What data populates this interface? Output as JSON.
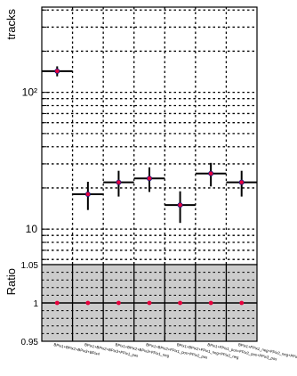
{
  "chart_data": [
    {
      "type": "scatter",
      "role": "main",
      "ylabel": "tracks",
      "yscale": "log",
      "ylim": [
        5.5,
        420
      ],
      "yticks": [
        {
          "value": 10,
          "label": "10"
        },
        {
          "value": 100,
          "label": "10²"
        }
      ],
      "grid": true,
      "marker_color": "#e8003c",
      "error_color": "#000000",
      "series": [
        {
          "x": [
            "BPix1+BPix2+BPix3+BPix4",
            "BPix1+BPix2+BPix3+FPix1_pos",
            "BPix1+BPix2+BPix3+FPix1_neg",
            "BPix1+BPix2+FPix1_pos+FPix2_pos",
            "BPix1+BPix2+FPix1_neg+FPix2_neg",
            "BPix1+FPix1_pos+FPix2_pos+FPix3_pos",
            "BPix1+FPix1_neg+FPix2_neg+FPix3_neg"
          ],
          "values": [
            143,
            18,
            22,
            23.5,
            15,
            25.5,
            22
          ],
          "errors": [
            12,
            4.2,
            4.7,
            4.8,
            3.9,
            5.0,
            4.7
          ]
        }
      ]
    },
    {
      "type": "scatter",
      "role": "ratio",
      "ylabel": "Ratio",
      "ylim": [
        0.95,
        1.05
      ],
      "yticks": [
        {
          "value": 0.95,
          "label": "0.95"
        },
        {
          "value": 1.0,
          "label": "1"
        },
        {
          "value": 1.05,
          "label": "1.05"
        }
      ],
      "grid": true,
      "band_color": "#cccccc",
      "marker_color": "#e8003c",
      "series": [
        {
          "x": [
            "BPix1+BPix2+BPix3+BPix4",
            "BPix1+BPix2+BPix3+FPix1_pos",
            "BPix1+BPix2+BPix3+FPix1_neg",
            "BPix1+BPix2+FPix1_pos+FPix2_pos",
            "BPix1+BPix2+FPix1_neg+FPix2_neg",
            "BPix1+FPix1_pos+FPix2_pos+FPix3_pos",
            "BPix1+FPix1_neg+FPix2_neg+FPix3_neg"
          ],
          "values": [
            1,
            1,
            1,
            1,
            1,
            1,
            1
          ],
          "errors": [
            0.05,
            0.05,
            0.05,
            0.05,
            0.05,
            0.05,
            0.05
          ]
        }
      ]
    }
  ]
}
